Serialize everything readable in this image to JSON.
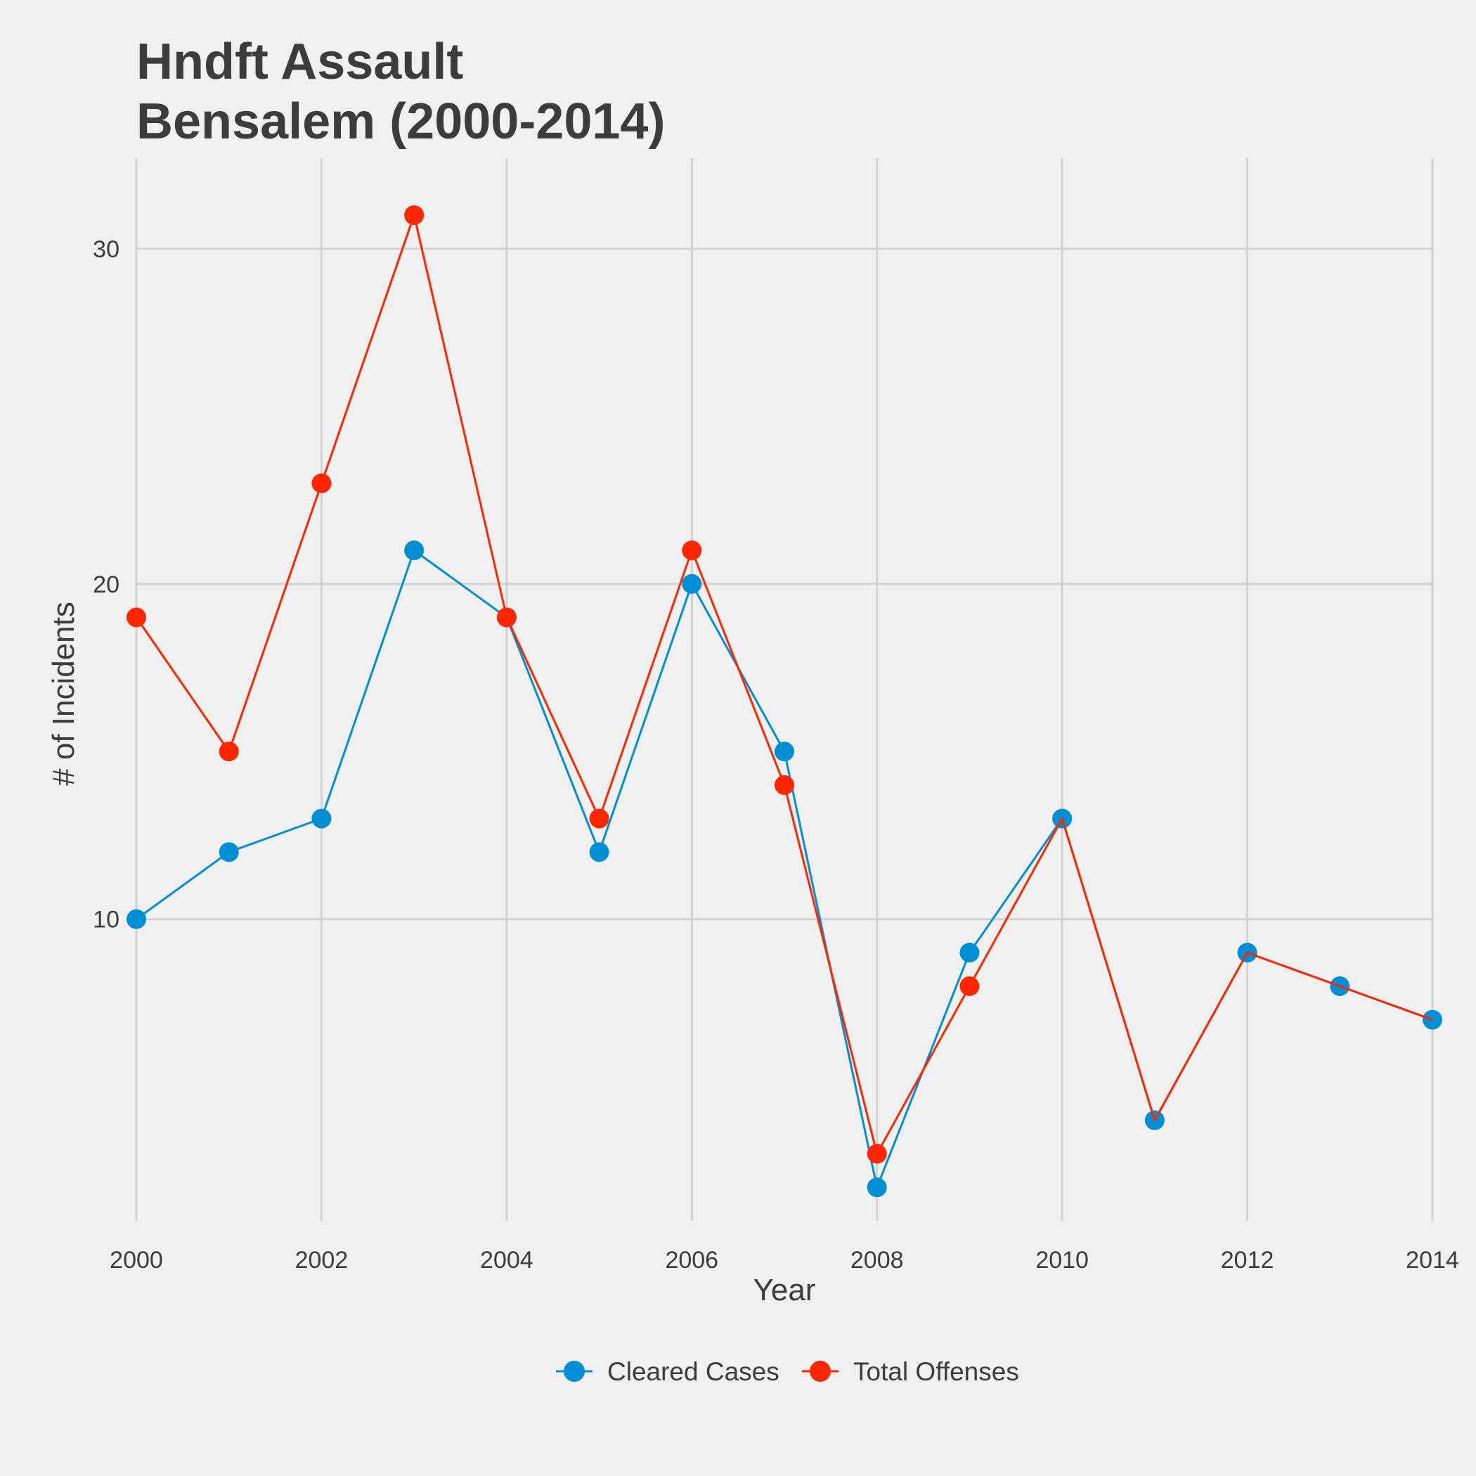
{
  "chart_data": {
    "type": "line",
    "title": "Hndft Assault",
    "subtitle": "Bensalem (2000-2014)",
    "xlabel": "Year",
    "ylabel": "# of Incidents",
    "x": [
      2000,
      2001,
      2002,
      2003,
      2004,
      2005,
      2006,
      2007,
      2008,
      2009,
      2010,
      2011,
      2012,
      2013,
      2014
    ],
    "xlim": [
      2000,
      2014
    ],
    "ylim": [
      1,
      32.7
    ],
    "xticks": [
      2000,
      2002,
      2004,
      2006,
      2008,
      2010,
      2012,
      2014
    ],
    "yticks": [
      10,
      20,
      30
    ],
    "grid": true,
    "legend_position": "bottom",
    "series": [
      {
        "name": "Cleared Cases",
        "color": "#008fd5",
        "values": [
          10,
          12,
          13,
          21,
          19,
          12,
          20,
          15,
          2,
          9,
          13,
          4,
          9,
          8,
          7
        ]
      },
      {
        "name": "Total Offenses",
        "color": "#ff2700",
        "values": [
          19,
          15,
          23,
          31,
          19,
          13,
          21,
          14,
          3,
          8,
          13,
          4,
          9,
          8,
          7
        ],
        "point_shown": [
          true,
          true,
          true,
          true,
          true,
          true,
          true,
          true,
          true,
          true,
          false,
          false,
          false,
          false,
          false
        ]
      }
    ]
  },
  "style": {
    "background": "#f0f0f0",
    "grid_color": "#d2d2d2",
    "text_color": "#3c3c3c"
  }
}
